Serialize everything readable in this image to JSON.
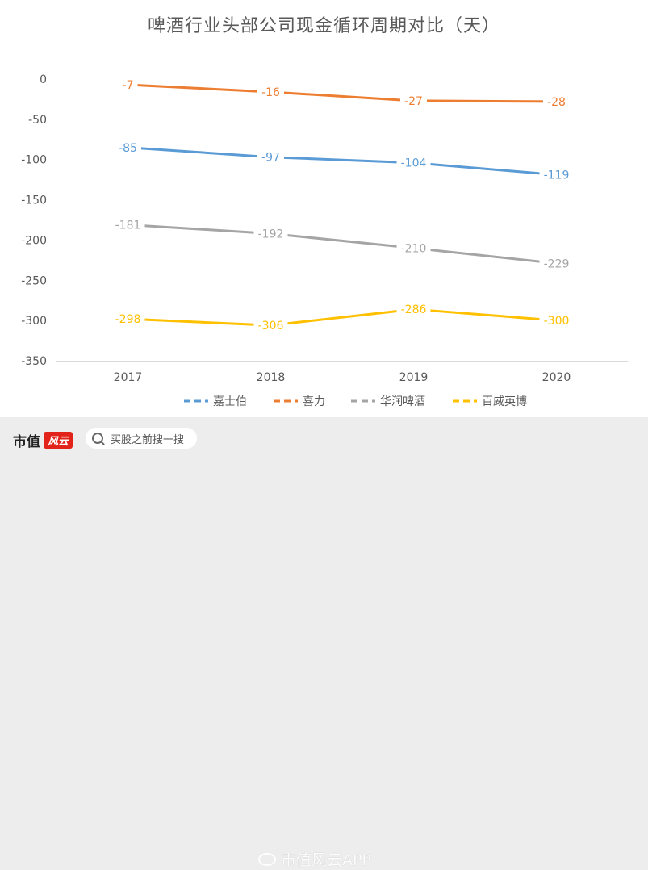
{
  "chart_data": {
    "type": "line",
    "title": "啤酒行业头部公司现金循环周期对比（天）",
    "categories": [
      "2017",
      "2018",
      "2019",
      "2020"
    ],
    "ylim": [
      -350,
      0
    ],
    "yticks": [
      "0",
      "-50",
      "-100",
      "-150",
      "-200",
      "-250",
      "-300",
      "-350"
    ],
    "ytick_values": [
      0,
      -50,
      -100,
      -150,
      -200,
      -250,
      -300,
      -350
    ],
    "grid": false,
    "legend_position": "bottom",
    "series": [
      {
        "name": "嘉士伯",
        "color": "#5b9bd5",
        "values": [
          -85,
          -97,
          -104,
          -119
        ],
        "labels": [
          "-85",
          "-97",
          "-104",
          "-119"
        ]
      },
      {
        "name": "喜力",
        "color": "#ed7d31",
        "values": [
          -7,
          -16,
          -27,
          -28
        ],
        "labels": [
          "-7",
          "-16",
          "-27",
          "-28"
        ]
      },
      {
        "name": "华润啤酒",
        "color": "#a5a5a5",
        "values": [
          -181,
          -192,
          -210,
          -229
        ],
        "labels": [
          "-181",
          "-192",
          "-210",
          "-229"
        ]
      },
      {
        "name": "百威英博",
        "color": "#ffc000",
        "values": [
          -298,
          -306,
          -286,
          -300
        ],
        "labels": [
          "-298",
          "-306",
          "-286",
          "-300"
        ]
      }
    ]
  },
  "footer": {
    "brand_text": "市值",
    "brand_badge": "风云",
    "search_placeholder": "买股之前搜一搜",
    "watermark": "市值风云APP"
  }
}
